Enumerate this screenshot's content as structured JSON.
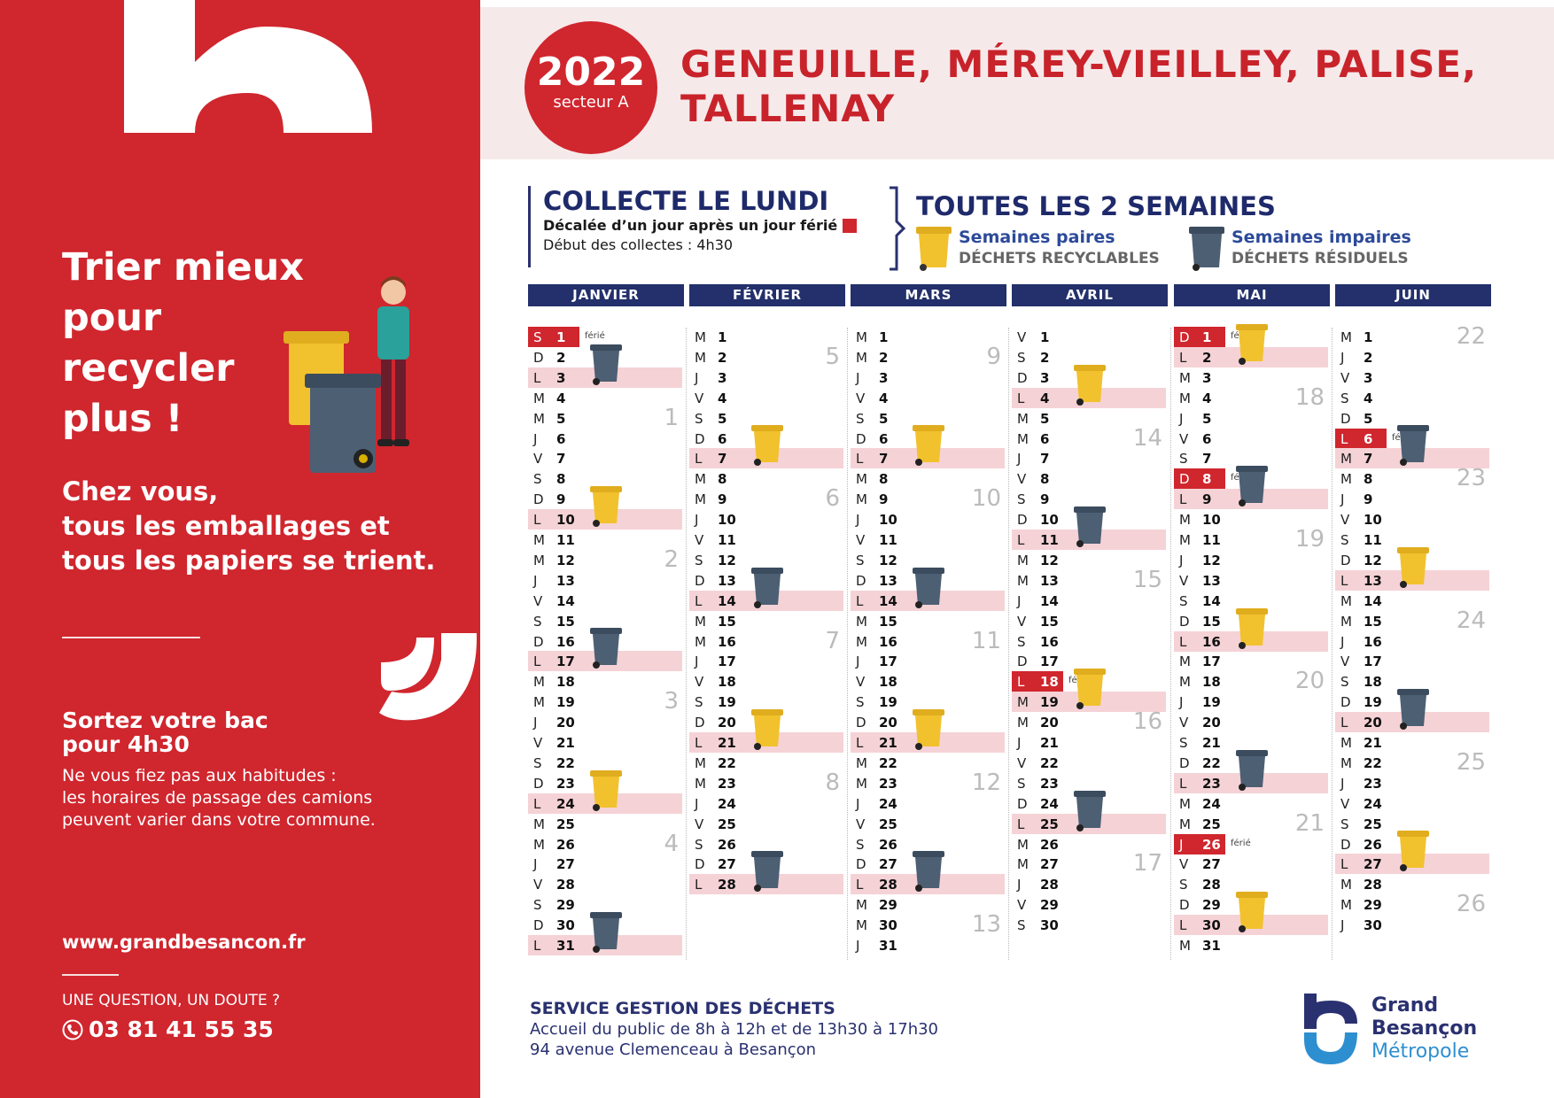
{
  "left_panel": {
    "tagline": [
      "Trier mieux",
      "pour",
      "recycler",
      "plus !"
    ],
    "intro": [
      "Chez vous,",
      "tous les emballages et",
      "tous les papiers se trient."
    ],
    "sortez_title": [
      "Sortez votre bac",
      "pour 4h30"
    ],
    "sortez_text": [
      "Ne vous fiez pas aux habitudes :",
      "les horaires de passage des camions",
      "peuvent varier dans votre commune."
    ],
    "website": "www.grandbesancon.fr",
    "question": "UNE QUESTION, UN DOUTE ?",
    "phone": "03 81 41 55 35"
  },
  "header": {
    "year": "2022",
    "sector": "secteur A",
    "towns_line1": "GENEUILLE, MÉREY-VIEILLEY, PALISE,",
    "towns_line2": "TALLENAY"
  },
  "collecte": {
    "title": "COLLECTE LE LUNDI",
    "decalee": "Décalée d’un jour après un jour férié",
    "debut": "Début des collectes : 4h30"
  },
  "semaines": {
    "title": "TOUTES LES 2 SEMAINES",
    "paires_title": "Semaines paires",
    "paires_sub": "DÉCHETS RECYCLABLES",
    "impaires_title": "Semaines impaires",
    "impaires_sub": "DÉCHETS RÉSIDUELS"
  },
  "colors": {
    "red": "#d0262e",
    "navy": "#23306b",
    "yellow_bin": "#f2c12e",
    "grey_bin": "#4d5f73",
    "monday": "#f5d2d6"
  },
  "ferie_label": "férié",
  "calendar": [
    {
      "name": "JANVIER",
      "start_letter_index": 5,
      "days": 31,
      "ferie": [
        1
      ],
      "shifted": [],
      "collect": {
        "3": "grey",
        "10": "yellow",
        "17": "grey",
        "24": "yellow",
        "31": "grey"
      },
      "weeks": [
        {
          "day": 5,
          "w": "1"
        },
        {
          "day": 12,
          "w": "2"
        },
        {
          "day": 19,
          "w": "3"
        },
        {
          "day": 26,
          "w": "4"
        }
      ]
    },
    {
      "name": "FÉVRIER",
      "start_letter_index": 1,
      "days": 28,
      "ferie": [],
      "shifted": [],
      "collect": {
        "7": "yellow",
        "14": "grey",
        "21": "yellow",
        "28": "grey"
      },
      "weeks": [
        {
          "day": 2,
          "w": "5"
        },
        {
          "day": 9,
          "w": "6"
        },
        {
          "day": 16,
          "w": "7"
        },
        {
          "day": 23,
          "w": "8"
        }
      ]
    },
    {
      "name": "MARS",
      "start_letter_index": 1,
      "days": 31,
      "ferie": [],
      "shifted": [],
      "collect": {
        "7": "yellow",
        "14": "grey",
        "21": "yellow",
        "28": "grey"
      },
      "weeks": [
        {
          "day": 2,
          "w": "9"
        },
        {
          "day": 9,
          "w": "10"
        },
        {
          "day": 16,
          "w": "11"
        },
        {
          "day": 23,
          "w": "12"
        },
        {
          "day": 30,
          "w": "13"
        }
      ]
    },
    {
      "name": "AVRIL",
      "start_letter_index": 4,
      "days": 30,
      "ferie": [
        18
      ],
      "shifted": [
        19
      ],
      "collect": {
        "4": "yellow",
        "11": "grey",
        "19": "yellow",
        "25": "grey"
      },
      "weeks": [
        {
          "day": 6,
          "w": "14"
        },
        {
          "day": 13,
          "w": "15"
        },
        {
          "day": 20,
          "w": "16"
        },
        {
          "day": 27,
          "w": "17"
        }
      ]
    },
    {
      "name": "MAI",
      "start_letter_index": 6,
      "days": 31,
      "ferie": [
        1,
        8,
        26
      ],
      "shifted": [],
      "collect": {
        "2": "yellow",
        "9": "grey",
        "16": "yellow",
        "23": "grey",
        "30": "yellow"
      },
      "weeks": [
        {
          "day": 4,
          "w": "18"
        },
        {
          "day": 11,
          "w": "19"
        },
        {
          "day": 18,
          "w": "20"
        },
        {
          "day": 25,
          "w": "21"
        }
      ]
    },
    {
      "name": "JUIN",
      "start_letter_index": 2,
      "days": 30,
      "ferie": [
        6
      ],
      "shifted": [
        7
      ],
      "collect": {
        "7": "grey",
        "13": "yellow",
        "20": "grey",
        "27": "yellow"
      },
      "weeks": [
        {
          "day": 1,
          "w": "22"
        },
        {
          "day": 8,
          "w": "23"
        },
        {
          "day": 15,
          "w": "24"
        },
        {
          "day": 22,
          "w": "25"
        },
        {
          "day": 29,
          "w": "26"
        }
      ]
    }
  ],
  "day_letters": [
    "L",
    "M",
    "M",
    "J",
    "V",
    "S",
    "D"
  ],
  "footer": {
    "title": "SERVICE GESTION DES DÉCHETS",
    "hours": "Accueil du public de 8h à 12h et de 13h30 à 17h30",
    "address": "94 avenue Clemenceau à Besançon"
  },
  "logo": {
    "line1": "Grand",
    "line2": "Besançon",
    "line3": "Métropole"
  }
}
